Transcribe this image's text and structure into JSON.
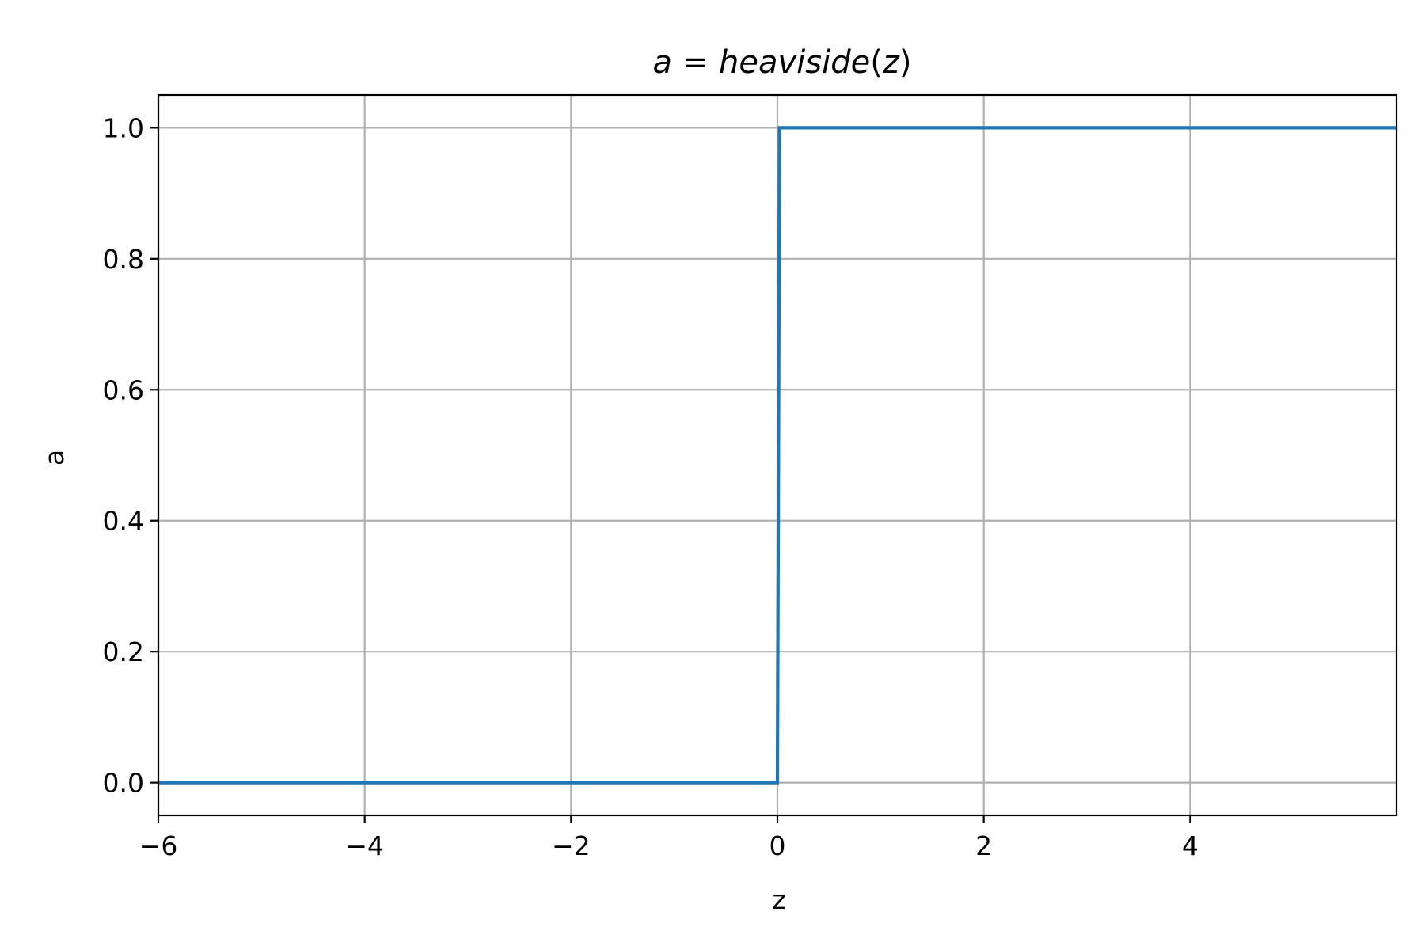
{
  "chart_data": {
    "type": "line",
    "title": "a = heaviside(z)",
    "title_parts": {
      "lhs": "a",
      "eq": " = ",
      "fn": "heaviside",
      "open": "(",
      "arg": "z",
      "close": ")"
    },
    "xlabel": "z",
    "ylabel": "a",
    "xlim": [
      -6,
      6
    ],
    "ylim": [
      -0.05,
      1.05
    ],
    "xticks": [
      -6,
      -4,
      -2,
      0,
      2,
      4
    ],
    "xtick_labels": [
      "−6",
      "−4",
      "−2",
      "0",
      "2",
      "4"
    ],
    "yticks": [
      0.0,
      0.2,
      0.4,
      0.6,
      0.8,
      1.0
    ],
    "ytick_labels": [
      "0.0",
      "0.2",
      "0.4",
      "0.6",
      "0.8",
      "1.0"
    ],
    "grid": true,
    "series": [
      {
        "color": "#1f77b4",
        "x": [
          -6,
          0,
          0.02,
          6
        ],
        "y": [
          0,
          0,
          1,
          1
        ]
      }
    ]
  }
}
